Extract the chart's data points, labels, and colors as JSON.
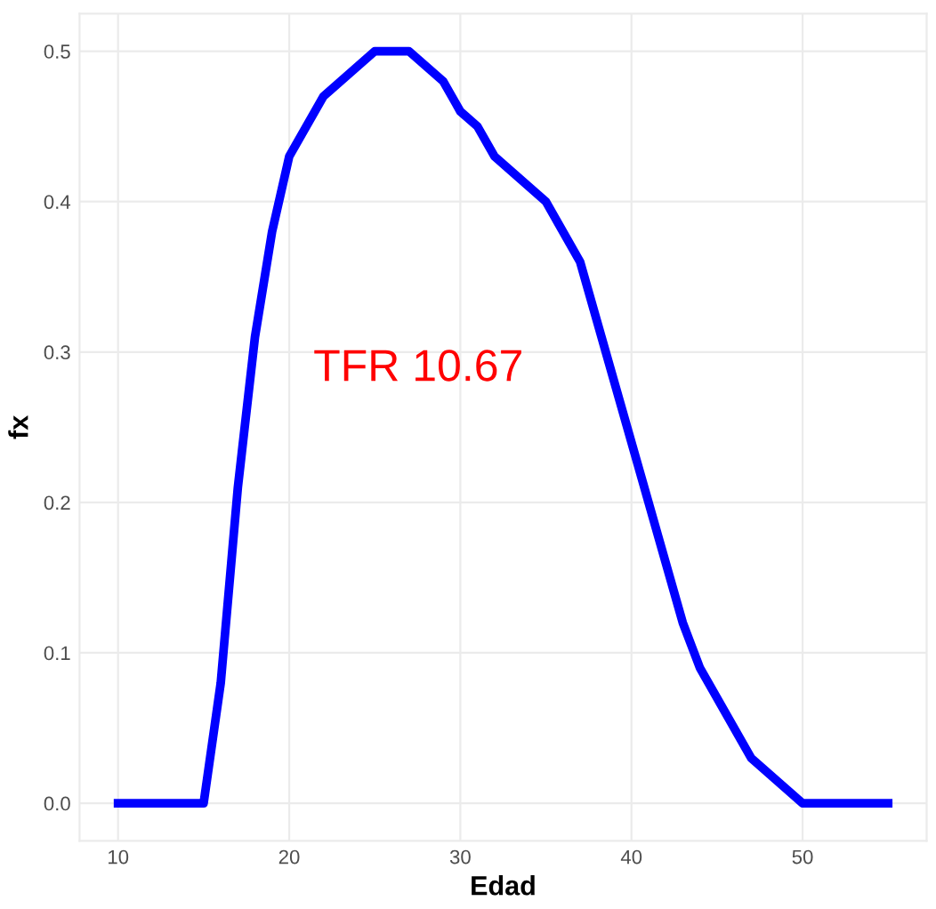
{
  "chart_data": {
    "type": "line",
    "xlabel": "Edad",
    "ylabel": "fx",
    "x": [
      10,
      15,
      16,
      17,
      18,
      19,
      20,
      22,
      25,
      27,
      29,
      30,
      31,
      32,
      35,
      37,
      43,
      44,
      47,
      50,
      55
    ],
    "series": [
      {
        "color": "#0000ff",
        "values": [
          0,
          0,
          0.08,
          0.21,
          0.31,
          0.38,
          0.43,
          0.47,
          0.5,
          0.5,
          0.48,
          0.46,
          0.45,
          0.43,
          0.4,
          0.36,
          0.12,
          0.09,
          0.03,
          0,
          0
        ]
      }
    ],
    "annotations": [
      "TFR 10.67"
    ],
    "xlim": [
      7.75,
      57.25
    ],
    "ylim": [
      -0.025,
      0.525
    ],
    "xticks": [
      10,
      20,
      30,
      40,
      50
    ],
    "yticks": [
      {
        "value": 0,
        "label": "0.0"
      },
      0.1,
      0.2,
      0.3,
      0.4,
      0.5
    ],
    "grid": true,
    "marker": "none",
    "line_style": "solid"
  }
}
